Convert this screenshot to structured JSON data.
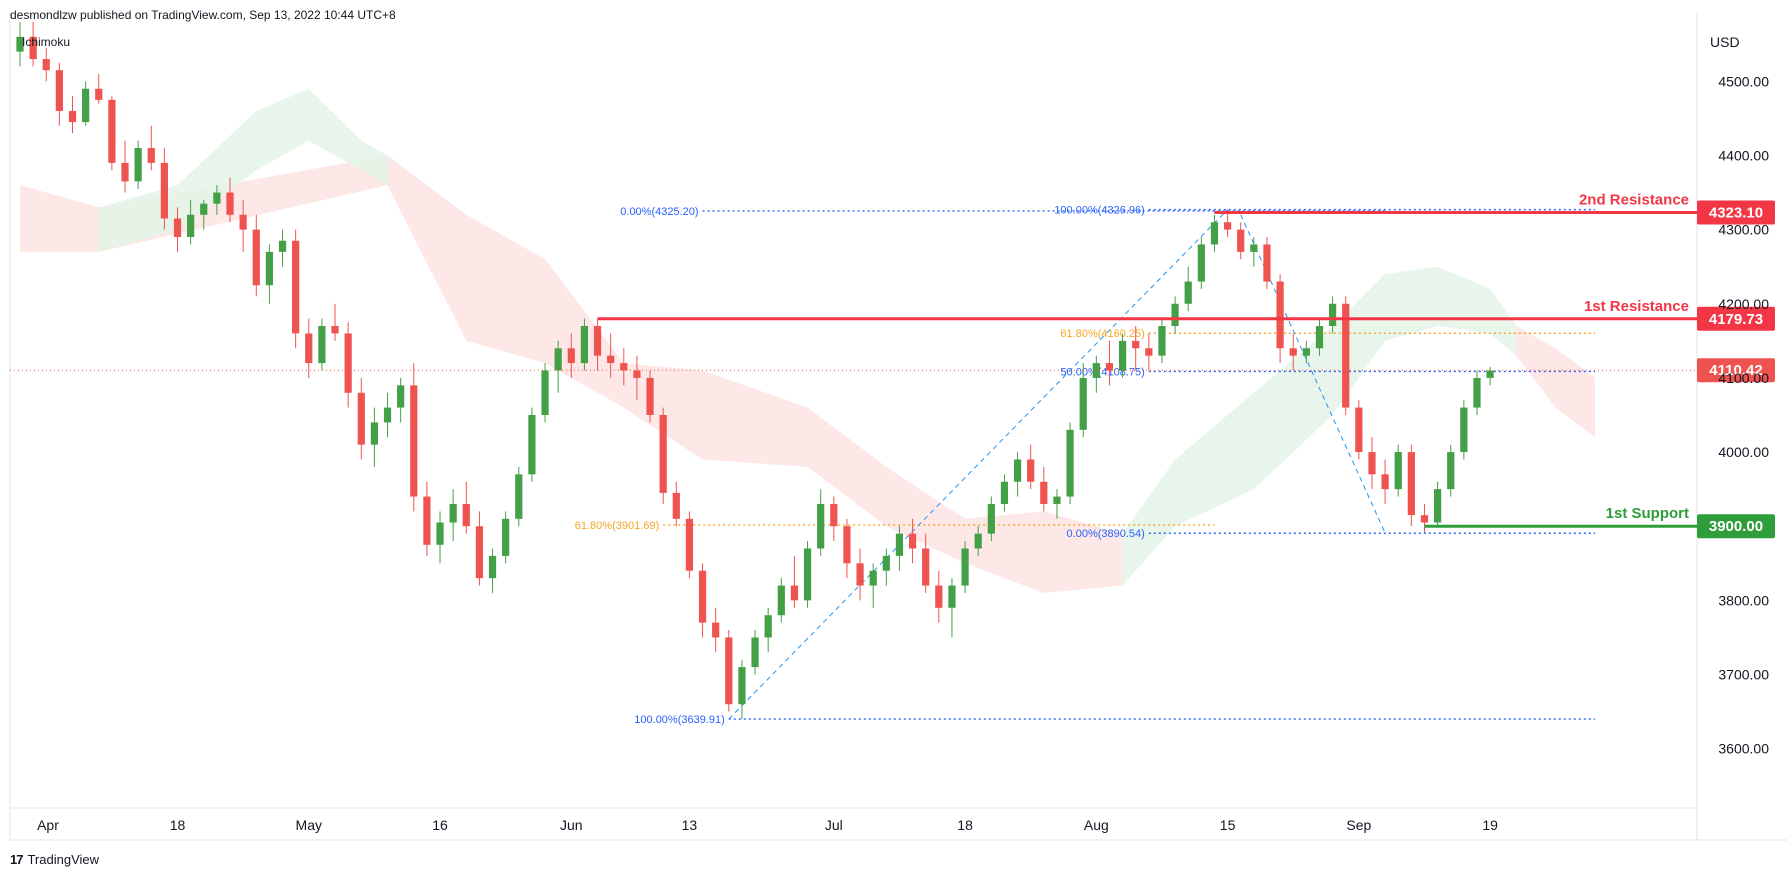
{
  "header": {
    "publisher": "desmondlzw published on TradingView.com, Sep 13, 2022 10:44 UTC+8"
  },
  "indicator": {
    "name": "Ichimoku"
  },
  "footer": {
    "brand": "TradingView",
    "logo_glyph": "17"
  },
  "colors": {
    "up": "#26a69a",
    "upBar": "#43a047",
    "down": "#ef5350",
    "resistance": "#f23645",
    "support": "#2e9d3a",
    "fibBlue": "#2962ff",
    "fibOrange": "#f5a623",
    "cloudGreen": "#e6f4e8",
    "cloudRed": "#fde4e4"
  },
  "chart_data": {
    "type": "candlestick",
    "currency": "USD",
    "ylim": [
      3520,
      4580
    ],
    "y_ticks": [
      "4500.00",
      "4400.00",
      "4300.00",
      "4200.00",
      "4100.00",
      "4000.00",
      "3900.00",
      "3800.00",
      "3700.00",
      "3600.00"
    ],
    "y_tick_values": [
      4500,
      4400,
      4300,
      4200,
      4100,
      4000,
      3900,
      3800,
      3700,
      3600
    ],
    "x_ticks": [
      "Apr",
      "18",
      "May",
      "16",
      "Jun",
      "13",
      "Jul",
      "18",
      "Aug",
      "15",
      "Sep",
      "19"
    ],
    "x_tick_index": [
      0,
      12,
      22,
      32,
      42,
      51,
      62,
      72,
      82,
      92,
      102,
      112
    ],
    "last_price": "4110.42",
    "last_price_value": 4110.42,
    "levels": [
      {
        "label": "2nd Resistance",
        "value": 4323.1,
        "badge": "4323.10",
        "kind": "resistance",
        "from_index": 91
      },
      {
        "label": "1st Resistance",
        "value": 4179.73,
        "badge": "4179.73",
        "kind": "resistance",
        "from_index": 44
      },
      {
        "label": "1st Support",
        "value": 3900.0,
        "badge": "3900.00",
        "kind": "support",
        "from_index": 107
      }
    ],
    "fib_levels": [
      {
        "label": "0.00%(4325.20)",
        "value": 4325.2,
        "color": "fibBlue",
        "from_index": 52,
        "to_index": 104,
        "label_side": "left"
      },
      {
        "label": "61.80%(3901.69)",
        "value": 3901.69,
        "color": "fibOrange",
        "from_index": 49,
        "to_index": 91,
        "label_side": "left"
      },
      {
        "label": "100.00%(3639.91)",
        "value": 3639.91,
        "color": "fibBlue",
        "from_index": 54,
        "to_index": 120,
        "label_side": "left"
      },
      {
        "label": "100.00%(4326.96)",
        "value": 4326.96,
        "color": "fibBlue",
        "from_index": 86,
        "to_index": 120,
        "label_side": "left"
      },
      {
        "label": "61.80%(4160.25)",
        "value": 4160.25,
        "color": "fibOrange",
        "from_index": 86,
        "to_index": 120,
        "label_side": "left"
      },
      {
        "label": "50.00%(4108.75)",
        "value": 4108.75,
        "color": "fibBlue",
        "from_index": 86,
        "to_index": 120,
        "label_side": "left"
      },
      {
        "label": "0.00%(3890.54)",
        "value": 3890.54,
        "color": "fibBlue",
        "from_index": 86,
        "to_index": 120,
        "label_side": "left"
      }
    ],
    "trend_lines": [
      {
        "from": [
          54,
          3640
        ],
        "to": [
          92,
          4327
        ]
      },
      {
        "from": [
          93,
          4320
        ],
        "to": [
          104,
          3891
        ]
      }
    ],
    "candles": [
      [
        4540,
        4580,
        4520,
        4560
      ],
      [
        4560,
        4580,
        4520,
        4530
      ],
      [
        4530,
        4545,
        4500,
        4515
      ],
      [
        4515,
        4525,
        4440,
        4460
      ],
      [
        4460,
        4480,
        4430,
        4445
      ],
      [
        4445,
        4500,
        4440,
        4490
      ],
      [
        4490,
        4510,
        4470,
        4475
      ],
      [
        4475,
        4480,
        4380,
        4390
      ],
      [
        4390,
        4420,
        4350,
        4365
      ],
      [
        4365,
        4420,
        4355,
        4410
      ],
      [
        4410,
        4440,
        4380,
        4390
      ],
      [
        4390,
        4410,
        4300,
        4315
      ],
      [
        4315,
        4330,
        4270,
        4290
      ],
      [
        4290,
        4340,
        4280,
        4320
      ],
      [
        4320,
        4340,
        4300,
        4335
      ],
      [
        4335,
        4360,
        4320,
        4350
      ],
      [
        4350,
        4370,
        4310,
        4320
      ],
      [
        4320,
        4340,
        4270,
        4300
      ],
      [
        4300,
        4320,
        4210,
        4225
      ],
      [
        4225,
        4280,
        4200,
        4270
      ],
      [
        4270,
        4300,
        4250,
        4285
      ],
      [
        4285,
        4300,
        4140,
        4160
      ],
      [
        4160,
        4180,
        4100,
        4120
      ],
      [
        4120,
        4180,
        4110,
        4170
      ],
      [
        4170,
        4200,
        4150,
        4160
      ],
      [
        4160,
        4175,
        4060,
        4080
      ],
      [
        4080,
        4100,
        3990,
        4010
      ],
      [
        4010,
        4060,
        3980,
        4040
      ],
      [
        4040,
        4080,
        4020,
        4060
      ],
      [
        4060,
        4100,
        4040,
        4090
      ],
      [
        4090,
        4120,
        3920,
        3940
      ],
      [
        3940,
        3960,
        3860,
        3875
      ],
      [
        3875,
        3920,
        3850,
        3905
      ],
      [
        3905,
        3950,
        3880,
        3930
      ],
      [
        3930,
        3960,
        3890,
        3900
      ],
      [
        3900,
        3920,
        3820,
        3830
      ],
      [
        3830,
        3870,
        3810,
        3860
      ],
      [
        3860,
        3920,
        3850,
        3910
      ],
      [
        3910,
        3980,
        3900,
        3970
      ],
      [
        3970,
        4060,
        3960,
        4050
      ],
      [
        4050,
        4120,
        4040,
        4110
      ],
      [
        4110,
        4150,
        4080,
        4140
      ],
      [
        4140,
        4160,
        4100,
        4120
      ],
      [
        4120,
        4180,
        4110,
        4170
      ],
      [
        4170,
        4180,
        4110,
        4130
      ],
      [
        4130,
        4160,
        4100,
        4120
      ],
      [
        4120,
        4140,
        4090,
        4110
      ],
      [
        4110,
        4130,
        4070,
        4100
      ],
      [
        4100,
        4110,
        4040,
        4050
      ],
      [
        4050,
        4060,
        3930,
        3945
      ],
      [
        3945,
        3960,
        3900,
        3910
      ],
      [
        3910,
        3920,
        3830,
        3840
      ],
      [
        3840,
        3850,
        3750,
        3770
      ],
      [
        3770,
        3790,
        3730,
        3750
      ],
      [
        3750,
        3760,
        3650,
        3660
      ],
      [
        3660,
        3720,
        3640,
        3710
      ],
      [
        3710,
        3760,
        3700,
        3750
      ],
      [
        3750,
        3790,
        3730,
        3780
      ],
      [
        3780,
        3830,
        3770,
        3820
      ],
      [
        3820,
        3860,
        3790,
        3800
      ],
      [
        3800,
        3880,
        3790,
        3870
      ],
      [
        3870,
        3950,
        3860,
        3930
      ],
      [
        3930,
        3940,
        3880,
        3900
      ],
      [
        3900,
        3910,
        3830,
        3850
      ],
      [
        3850,
        3870,
        3800,
        3820
      ],
      [
        3820,
        3850,
        3790,
        3840
      ],
      [
        3840,
        3870,
        3820,
        3860
      ],
      [
        3860,
        3900,
        3840,
        3890
      ],
      [
        3890,
        3910,
        3850,
        3870
      ],
      [
        3870,
        3890,
        3810,
        3820
      ],
      [
        3820,
        3840,
        3770,
        3790
      ],
      [
        3790,
        3830,
        3750,
        3820
      ],
      [
        3820,
        3880,
        3810,
        3870
      ],
      [
        3870,
        3900,
        3860,
        3890
      ],
      [
        3890,
        3940,
        3880,
        3930
      ],
      [
        3930,
        3970,
        3920,
        3960
      ],
      [
        3960,
        4000,
        3940,
        3990
      ],
      [
        3990,
        4010,
        3950,
        3960
      ],
      [
        3960,
        3980,
        3920,
        3930
      ],
      [
        3930,
        3950,
        3910,
        3940
      ],
      [
        3940,
        4040,
        3930,
        4030
      ],
      [
        4030,
        4120,
        4020,
        4100
      ],
      [
        4100,
        4130,
        4080,
        4120
      ],
      [
        4120,
        4150,
        4090,
        4110
      ],
      [
        4110,
        4160,
        4100,
        4150
      ],
      [
        4150,
        4170,
        4110,
        4140
      ],
      [
        4140,
        4160,
        4110,
        4130
      ],
      [
        4130,
        4180,
        4120,
        4170
      ],
      [
        4170,
        4210,
        4160,
        4200
      ],
      [
        4200,
        4250,
        4190,
        4230
      ],
      [
        4230,
        4290,
        4220,
        4280
      ],
      [
        4280,
        4320,
        4270,
        4310
      ],
      [
        4310,
        4327,
        4290,
        4300
      ],
      [
        4300,
        4310,
        4260,
        4270
      ],
      [
        4270,
        4290,
        4250,
        4280
      ],
      [
        4280,
        4290,
        4220,
        4230
      ],
      [
        4230,
        4240,
        4120,
        4140
      ],
      [
        4140,
        4160,
        4110,
        4130
      ],
      [
        4130,
        4150,
        4120,
        4140
      ],
      [
        4140,
        4180,
        4130,
        4170
      ],
      [
        4170,
        4210,
        4160,
        4200
      ],
      [
        4200,
        4210,
        4050,
        4060
      ],
      [
        4060,
        4070,
        3990,
        4000
      ],
      [
        4000,
        4020,
        3950,
        3970
      ],
      [
        3970,
        3990,
        3930,
        3950
      ],
      [
        3950,
        4010,
        3940,
        4000
      ],
      [
        4000,
        4010,
        3900,
        3915
      ],
      [
        3915,
        3930,
        3891,
        3905
      ],
      [
        3905,
        3960,
        3900,
        3950
      ],
      [
        3950,
        4010,
        3940,
        4000
      ],
      [
        4000,
        4070,
        3990,
        4060
      ],
      [
        4060,
        4110,
        4050,
        4100
      ],
      [
        4100,
        4115,
        4090,
        4110
      ]
    ],
    "cloud_green": [
      [
        6,
        4330,
        4270
      ],
      [
        12,
        4360,
        4300
      ],
      [
        18,
        4460,
        4380
      ],
      [
        22,
        4490,
        4420
      ],
      [
        26,
        4420,
        4380
      ],
      [
        28,
        4400,
        4360
      ]
    ],
    "cloud_red": [
      [
        0,
        4360,
        4270
      ],
      [
        6,
        4330,
        4270
      ],
      [
        28,
        4400,
        4360
      ],
      [
        34,
        4320,
        4150
      ],
      [
        40,
        4260,
        4120
      ],
      [
        46,
        4120,
        4060
      ],
      [
        52,
        4110,
        3990
      ],
      [
        60,
        4060,
        3980
      ],
      [
        66,
        3980,
        3900
      ],
      [
        72,
        3910,
        3850
      ],
      [
        78,
        3920,
        3810
      ],
      [
        84,
        3890,
        3820
      ]
    ],
    "cloud_green2": [
      [
        84,
        3890,
        3820
      ],
      [
        88,
        3990,
        3900
      ],
      [
        94,
        4080,
        3950
      ],
      [
        100,
        4170,
        4050
      ],
      [
        104,
        4240,
        4150
      ],
      [
        108,
        4250,
        4170
      ],
      [
        112,
        4220,
        4160
      ],
      [
        114,
        4170,
        4130
      ]
    ],
    "cloud_red2": [
      [
        114,
        4170,
        4130
      ],
      [
        117,
        4140,
        4060
      ],
      [
        120,
        4100,
        4020
      ]
    ]
  }
}
